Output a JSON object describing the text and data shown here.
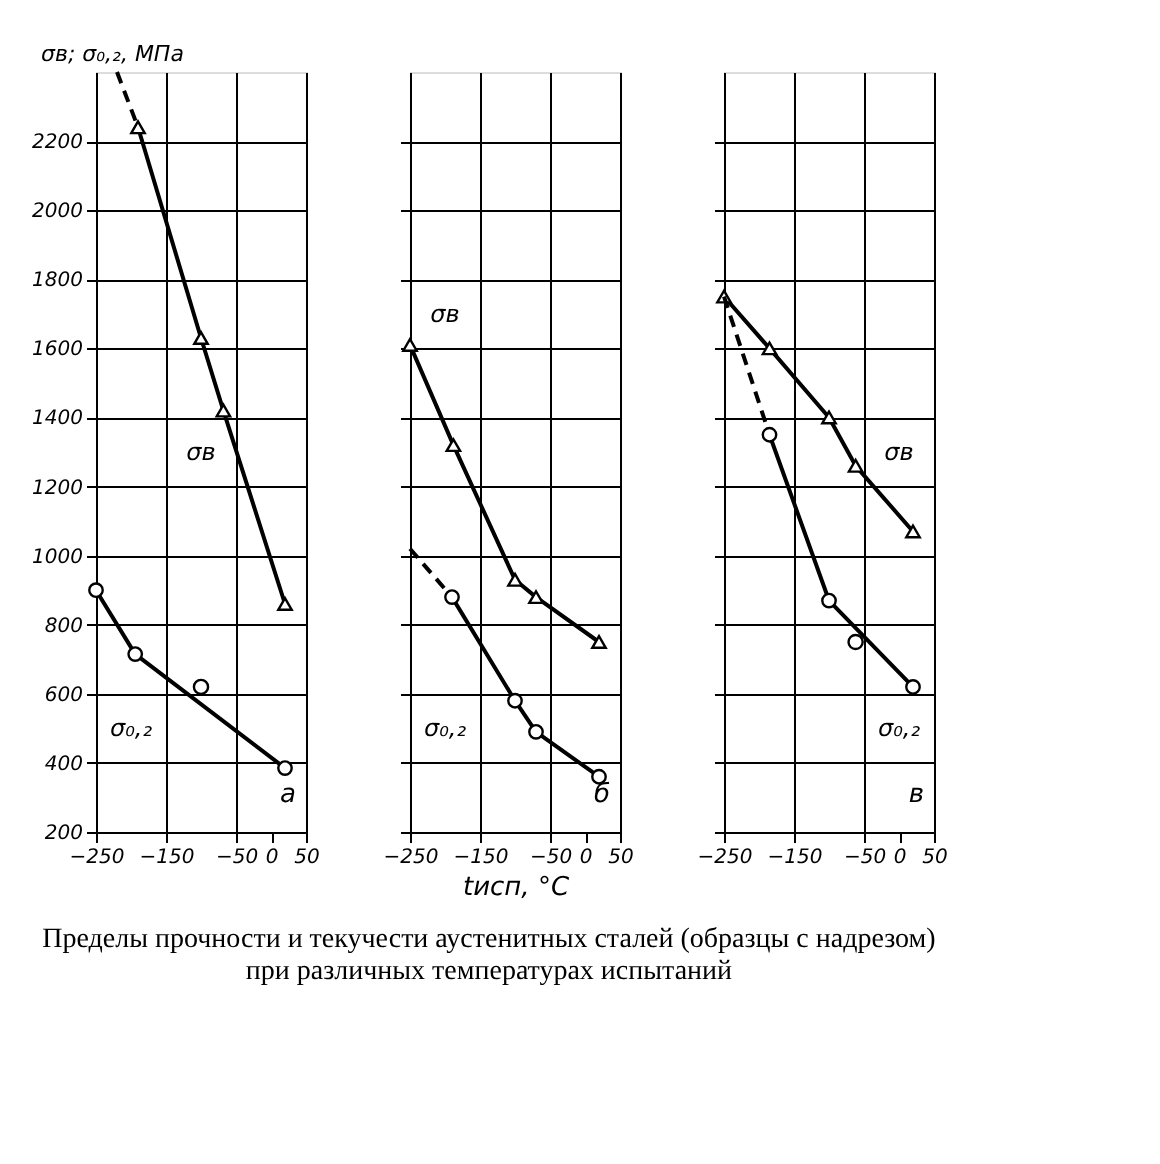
{
  "chart_data": [
    {
      "type": "line",
      "ylabel": "σв; σ₀,₂, МПа",
      "xlim": [
        -250,
        50
      ],
      "ylim": [
        200,
        2400
      ],
      "xticks": [
        -250,
        -150,
        -50,
        0,
        50
      ],
      "yticks": [
        200,
        400,
        600,
        800,
        1000,
        1200,
        1400,
        1600,
        1800,
        2000,
        2200
      ],
      "grid": true,
      "series": [
        {
          "color": "#000000",
          "line_style": "dashed",
          "x": [
            -220,
            -190
          ],
          "values": [
            2400,
            2240
          ]
        },
        {
          "name": "σв",
          "color": "#000000",
          "marker": "triangle",
          "line_style": "solid",
          "x": [
            -190,
            -100,
            -68,
            20
          ],
          "values": [
            2240,
            1630,
            1420,
            860
          ]
        },
        {
          "name": "σ₀,₂",
          "color": "#000000",
          "marker": "circle",
          "line_style": "solid",
          "x": [
            -250,
            -194,
            20
          ],
          "values": [
            900,
            715,
            385
          ]
        },
        {
          "type": "scatter",
          "color": "#000000",
          "x": [
            -100
          ],
          "values": [
            620
          ]
        }
      ],
      "annotations": [
        "а"
      ]
    },
    {
      "type": "line",
      "xlabel": "tисп, °C",
      "title": "Пределы прочности и текучести аустенитных сталей (образцы с надрезом) при различных температурах  испытаний",
      "xlim": [
        -250,
        50
      ],
      "ylim": [
        200,
        2400
      ],
      "xticks": [
        -250,
        -150,
        -50,
        0,
        50
      ],
      "yticks": [
        200,
        400,
        600,
        800,
        1000,
        1200,
        1400,
        1600,
        1800,
        2000,
        2200
      ],
      "grid": true,
      "tick_labels": "x",
      "series": [
        {
          "name": "σв",
          "color": "#000000",
          "marker": "triangle",
          "line_style": "solid",
          "x": [
            -250,
            -188,
            -100,
            -70,
            20
          ],
          "values": [
            1610,
            1320,
            930,
            880,
            750
          ]
        },
        {
          "color": "#000000",
          "line_style": "dashed",
          "x": [
            -250,
            -190
          ],
          "values": [
            1020,
            880
          ]
        },
        {
          "name": "σ₀,₂",
          "color": "#000000",
          "marker": "circle",
          "line_style": "solid",
          "x": [
            -190,
            -100,
            -70,
            20
          ],
          "values": [
            880,
            580,
            490,
            360
          ]
        }
      ],
      "annotations": [
        "б"
      ]
    },
    {
      "type": "line",
      "xlim": [
        -250,
        50
      ],
      "ylim": [
        200,
        2400
      ],
      "xticks": [
        -250,
        -150,
        -50,
        0,
        50
      ],
      "yticks": [
        200,
        400,
        600,
        800,
        1000,
        1200,
        1400,
        1600,
        1800,
        2000,
        2200
      ],
      "grid": true,
      "tick_labels": "x",
      "series": [
        {
          "name": "σв",
          "color": "#000000",
          "marker": "triangle",
          "line_style": "solid",
          "x": [
            -250,
            -185,
            -100,
            -62,
            20
          ],
          "values": [
            1750,
            1600,
            1400,
            1260,
            1070
          ]
        },
        {
          "color": "#000000",
          "line_style": "dashed",
          "x": [
            -250,
            -185
          ],
          "values": [
            1750,
            1350
          ]
        },
        {
          "name": "σ₀,₂",
          "color": "#000000",
          "marker": "circle",
          "line_style": "solid",
          "x": [
            -185,
            -100,
            20
          ],
          "values": [
            1350,
            870,
            620
          ]
        },
        {
          "type": "scatter",
          "color": "#000000",
          "x": [
            -62
          ],
          "values": [
            750
          ]
        }
      ],
      "annotations": [
        "в"
      ]
    }
  ]
}
